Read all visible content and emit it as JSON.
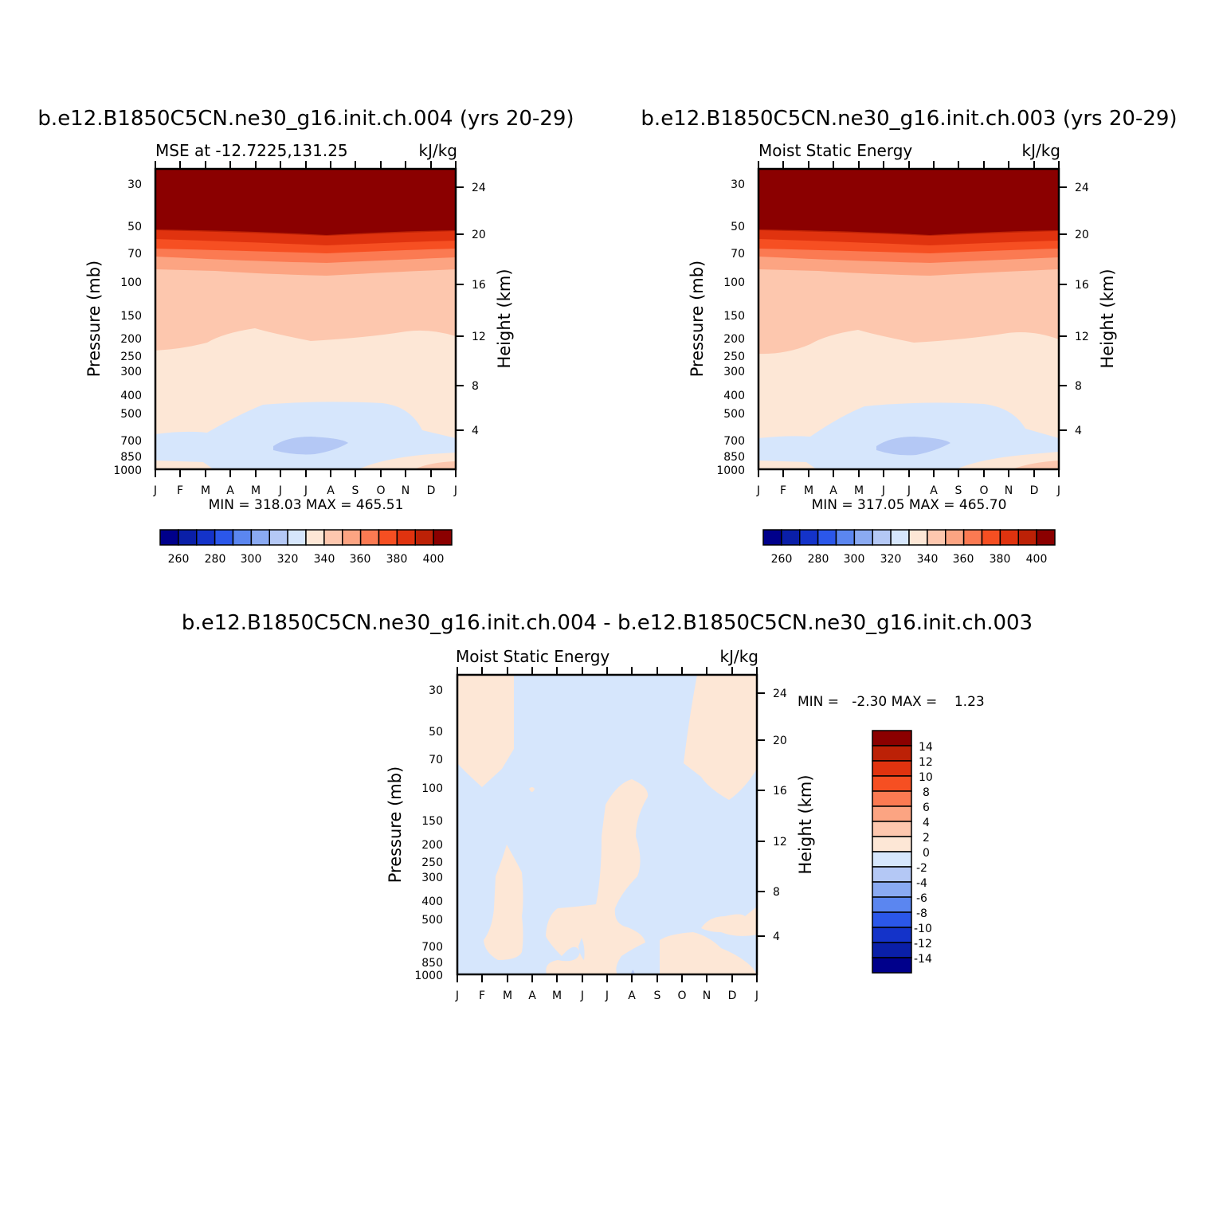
{
  "chart_data": [
    {
      "type": "contour",
      "title": "b.e12.B1850C5CN.ne30_g16.init.ch.004 (yrs 20-29)",
      "subtitle_left": "MSE at -12.7225,131.25",
      "subtitle_right": "kJ/kg",
      "ylabel": "Pressure (mb)",
      "ylabel_right": "Height (km)",
      "x_ticks": [
        "J",
        "F",
        "M",
        "A",
        "M",
        "J",
        "J",
        "A",
        "S",
        "O",
        "N",
        "D",
        "J"
      ],
      "y_ticks": [
        30,
        50,
        70,
        100,
        150,
        200,
        250,
        300,
        400,
        500,
        700,
        850,
        1000
      ],
      "y_ticks_right": [
        24,
        20,
        16,
        12,
        8,
        4
      ],
      "min": 318.03,
      "max": 465.51,
      "min_max_text": "MIN = 318.03 MAX = 465.51",
      "colorbar_labels": [
        "260",
        "280",
        "300",
        "320",
        "340",
        "360",
        "380",
        "400"
      ]
    },
    {
      "type": "contour",
      "title": "b.e12.B1850C5CN.ne30_g16.init.ch.003 (yrs 20-29)",
      "subtitle_left": "Moist Static Energy",
      "subtitle_right": "kJ/kg",
      "ylabel": "Pressure (mb)",
      "ylabel_right": "Height (km)",
      "x_ticks": [
        "J",
        "F",
        "M",
        "A",
        "M",
        "J",
        "J",
        "A",
        "S",
        "O",
        "N",
        "D",
        "J"
      ],
      "y_ticks": [
        30,
        50,
        70,
        100,
        150,
        200,
        250,
        300,
        400,
        500,
        700,
        850,
        1000
      ],
      "y_ticks_right": [
        24,
        20,
        16,
        12,
        8,
        4
      ],
      "min": 317.05,
      "max": 465.7,
      "min_max_text": "MIN = 317.05 MAX = 465.70",
      "colorbar_labels": [
        "260",
        "280",
        "300",
        "320",
        "340",
        "360",
        "380",
        "400"
      ]
    },
    {
      "type": "contour",
      "title": "b.e12.B1850C5CN.ne30_g16.init.ch.004 - b.e12.B1850C5CN.ne30_g16.init.ch.003",
      "subtitle_left": "Moist Static Energy",
      "subtitle_right": "kJ/kg",
      "ylabel": "Pressure (mb)",
      "ylabel_right": "Height (km)",
      "x_ticks": [
        "J",
        "F",
        "M",
        "A",
        "M",
        "J",
        "J",
        "A",
        "S",
        "O",
        "N",
        "D",
        "J"
      ],
      "y_ticks": [
        30,
        50,
        70,
        100,
        150,
        200,
        250,
        300,
        400,
        500,
        700,
        850,
        1000
      ],
      "y_ticks_right": [
        24,
        20,
        16,
        12,
        8,
        4
      ],
      "min": -2.3,
      "max": 1.23,
      "min_max_text": "MIN =   -2.30 MAX =    1.23",
      "colorbar_labels": [
        "14",
        "12",
        "10",
        "8",
        "6",
        "4",
        "2",
        "0",
        "-2",
        "-4",
        "-6",
        "-8",
        "-10",
        "-12",
        "-14"
      ]
    }
  ],
  "palette": {
    "main": [
      "#00008b",
      "#0a1fa8",
      "#1433c9",
      "#2b57ea",
      "#5b86f0",
      "#8aaaf2",
      "#b4c8f5",
      "#d6e6fc",
      "#fde7d6",
      "#fdc7ae",
      "#fca482",
      "#fb7a52",
      "#f64f22",
      "#e0330f",
      "#bc2106",
      "#8b0000"
    ],
    "diff": [
      "#8b0000",
      "#bc2106",
      "#e0330f",
      "#f64f22",
      "#fb7a52",
      "#fca482",
      "#fdc7ae",
      "#fde7d6",
      "#d6e6fc",
      "#b4c8f5",
      "#8aaaf2",
      "#5b86f0",
      "#2b57ea",
      "#1433c9",
      "#0a1fa8",
      "#00008b"
    ]
  }
}
